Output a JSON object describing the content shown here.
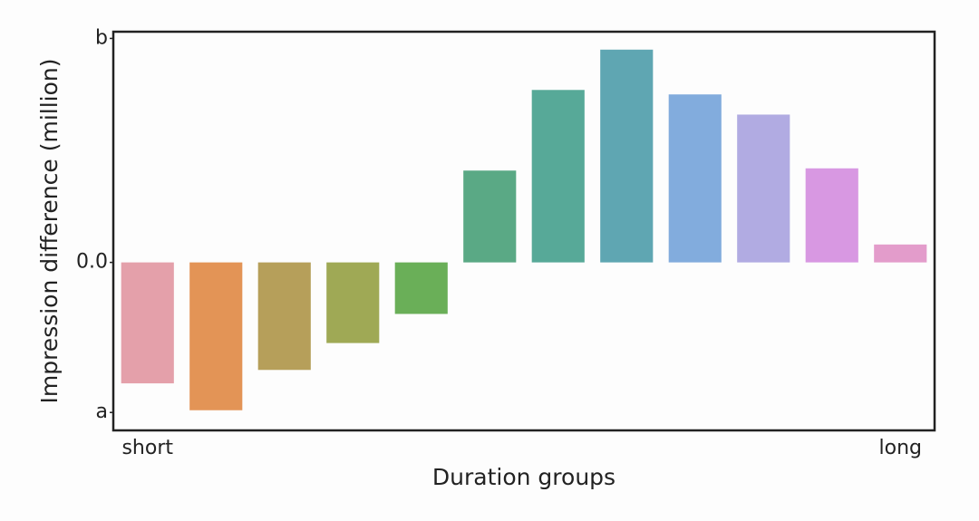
{
  "chart_data": {
    "type": "bar",
    "x_label": "Duration groups",
    "y_label": "Impression difference (million)",
    "categories": [
      "short",
      null,
      null,
      null,
      null,
      null,
      null,
      null,
      null,
      null,
      null,
      "long"
    ],
    "values": [
      -0.54,
      -0.66,
      -0.48,
      -0.36,
      -0.23,
      0.41,
      0.77,
      0.95,
      0.75,
      0.66,
      0.42,
      0.08
    ],
    "colors": [
      "#e4a0aa",
      "#e39456",
      "#b69f5a",
      "#9fa955",
      "#6aaf58",
      "#5aa985",
      "#57a998",
      "#5fa6b2",
      "#82acdd",
      "#b1abe2",
      "#d898e2",
      "#e39ccb"
    ],
    "ylim": [
      -0.75,
      1.03
    ],
    "yticks": [
      {
        "value": -0.67,
        "label": "a"
      },
      {
        "value": 0,
        "label": "0.0"
      },
      {
        "value": 1,
        "label": "b"
      }
    ],
    "grid": false
  }
}
